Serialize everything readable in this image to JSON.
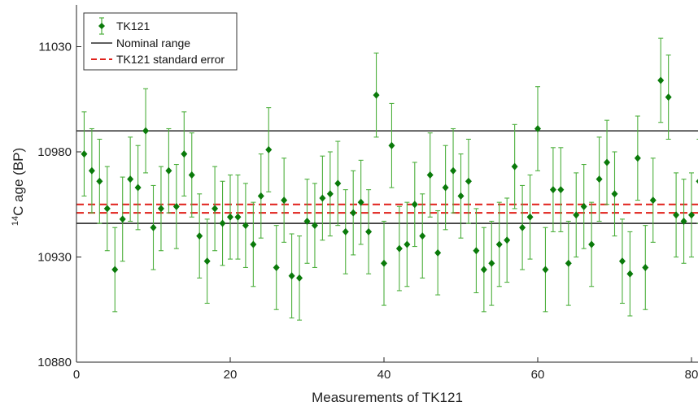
{
  "chart_data": {
    "type": "scatter",
    "xlabel": "Measurements of TK121",
    "ylabel_prefix": "14",
    "ylabel_main": "C age (BP)",
    "xlim": [
      0,
      81
    ],
    "ylim": [
      10880,
      11050
    ],
    "x_ticks": [
      0,
      20,
      40,
      60,
      80
    ],
    "y_ticks": [
      10880,
      10930,
      10980,
      11030
    ],
    "grid": false,
    "legend_position": "top-left",
    "legend": [
      "TK121",
      "Nominal range",
      "TK121 standard error"
    ],
    "colors": {
      "points": "#0a7a0a",
      "errorbars": "#4caf3c",
      "nominal": "#000000",
      "stderr": "#e0201a"
    },
    "nominal_range": [
      10946,
      10990
    ],
    "standard_error": [
      10951,
      10955
    ],
    "x": [
      1,
      2,
      3,
      4,
      5,
      6,
      7,
      8,
      9,
      10,
      11,
      12,
      13,
      14,
      15,
      16,
      17,
      18,
      19,
      20,
      21,
      22,
      23,
      24,
      25,
      26,
      27,
      28,
      29,
      30,
      31,
      32,
      33,
      34,
      35,
      36,
      37,
      38,
      39,
      40,
      41,
      42,
      43,
      44,
      45,
      46,
      47,
      48,
      49,
      50,
      51,
      52,
      53,
      54,
      55,
      56,
      57,
      58,
      59,
      60,
      61,
      62,
      63,
      64,
      65,
      66,
      67,
      68,
      69,
      70,
      71,
      72,
      73,
      74,
      75,
      76,
      77,
      78,
      79,
      80,
      81
    ],
    "y": [
      10979,
      10971,
      10966,
      10953,
      10924,
      10948,
      10967,
      10963,
      10990,
      10944,
      10953,
      10971,
      10954,
      10979,
      10969,
      10940,
      10928,
      10953,
      10946,
      10949,
      10949,
      10945,
      10936,
      10959,
      10981,
      10925,
      10957,
      10921,
      10920,
      10947,
      10945,
      10958,
      10960,
      10965,
      10942,
      10951,
      10956,
      10942,
      11007,
      10927,
      10983,
      10934,
      10936,
      10955,
      10940,
      10969,
      10932,
      10963,
      10971,
      10959,
      10966,
      10933,
      10924,
      10927,
      10936,
      10938,
      10973,
      10944,
      10949,
      10991,
      10924,
      10962,
      10962,
      10927,
      10950,
      10954,
      10936,
      10967,
      10975,
      10960,
      10928,
      10922,
      10977,
      10925,
      10957,
      11014,
      11006,
      10950,
      10947,
      10950,
      10966
    ],
    "err": [
      20,
      20,
      20,
      20,
      20,
      20,
      20,
      20,
      20,
      20,
      20,
      20,
      20,
      20,
      20,
      20,
      20,
      20,
      20,
      20,
      20,
      20,
      20,
      20,
      20,
      20,
      20,
      20,
      20,
      20,
      20,
      20,
      20,
      20,
      20,
      20,
      20,
      20,
      20,
      20,
      20,
      20,
      20,
      20,
      20,
      20,
      20,
      20,
      20,
      20,
      20,
      20,
      20,
      20,
      20,
      20,
      20,
      20,
      20,
      20,
      20,
      20,
      20,
      20,
      20,
      20,
      20,
      20,
      20,
      20,
      20,
      20,
      20,
      20,
      20,
      20,
      20,
      20,
      20,
      20,
      20
    ]
  }
}
